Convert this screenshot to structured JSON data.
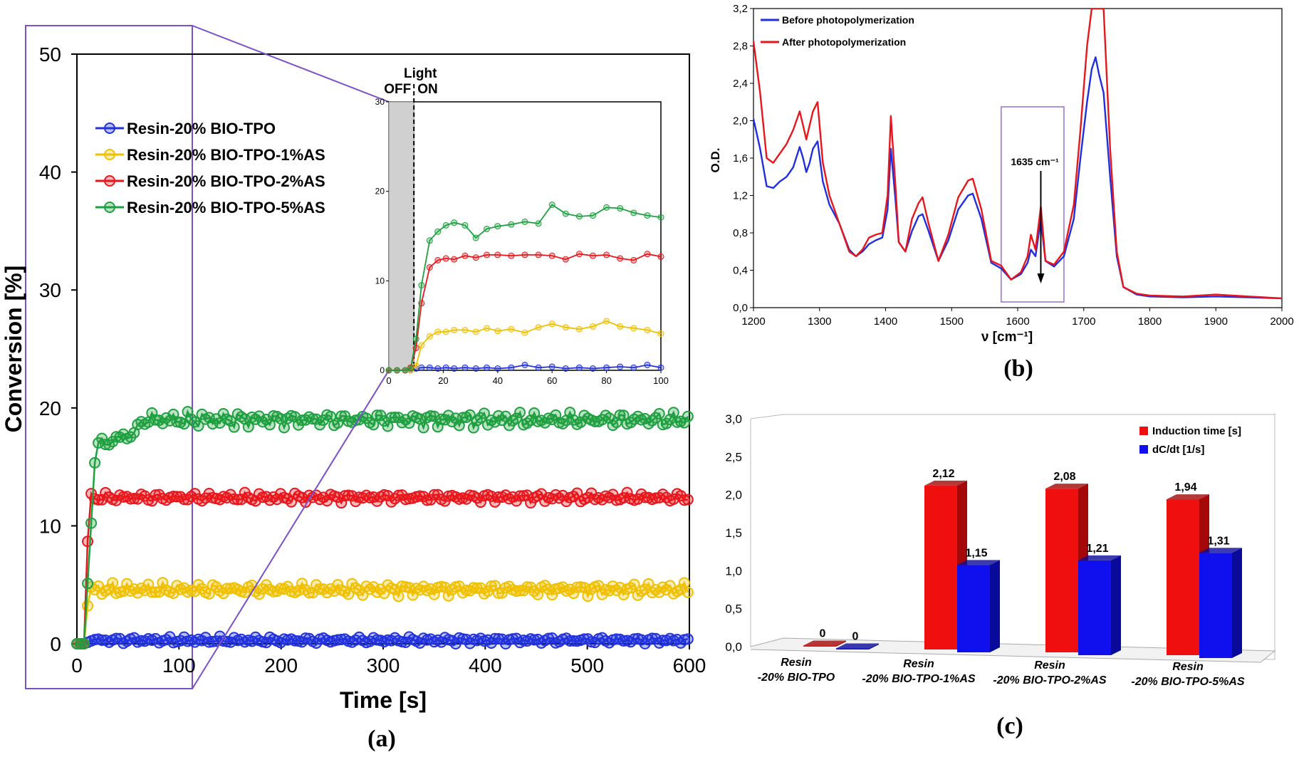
{
  "panel_labels": {
    "a": "(a)",
    "b": "(b)",
    "c": "(c)"
  },
  "chart_data": [
    {
      "id": "a",
      "type": "line",
      "xlabel": "Time [s]",
      "ylabel": "Conversion [%]",
      "xlim": [
        0,
        600
      ],
      "ylim": [
        0,
        50
      ],
      "xticks": [
        "0",
        "100",
        "200",
        "300",
        "400",
        "500",
        "600"
      ],
      "yticks": [
        "0",
        "10",
        "20",
        "30",
        "40",
        "50"
      ],
      "legend_position": "top-left",
      "series": [
        {
          "name": "Resin-20% BIO-TPO",
          "color": "#2233dd",
          "plateau": 0.3,
          "noise": 0.25,
          "jump_end": 10
        },
        {
          "name": "Resin-20% BIO-TPO-1%AS",
          "color": "#f0c000",
          "plateau": 4.6,
          "noise": 0.45,
          "jump_end": 12
        },
        {
          "name": "Resin-20% BIO-TPO-2%AS",
          "color": "#e8161c",
          "plateau": 12.4,
          "noise": 0.35,
          "jump_end": 12
        },
        {
          "name": "Resin-20% BIO-TPO-5%AS",
          "color": "#1fa040",
          "plateau": 19.0,
          "noise": 0.55,
          "jump_end": 20
        }
      ],
      "inset": {
        "xlim": [
          0,
          100
        ],
        "ylim": [
          0,
          30
        ],
        "xticks": [
          "0",
          "20",
          "40",
          "60",
          "80",
          "100"
        ],
        "yticks": [
          "0",
          "10",
          "20",
          "30"
        ],
        "light_off_label": "OFF",
        "light_on_label": "ON",
        "light_title": "Light",
        "light_on_time": 10,
        "x": [
          0,
          3,
          6,
          8,
          10,
          12,
          15,
          18,
          21,
          24,
          28,
          32,
          36,
          40,
          45,
          50,
          55,
          60,
          65,
          70,
          75,
          80,
          85,
          90,
          95,
          100
        ],
        "series": [
          {
            "name": "Resin-20% BIO-TPO",
            "values": [
              0,
              0,
              0,
              0,
              0.2,
              0.3,
              0.3,
              0.2,
              0.3,
              0.2,
              0.3,
              0.2,
              0.3,
              0.2,
              0.3,
              0.6,
              0.3,
              0.4,
              0.2,
              0.3,
              0.2,
              0.3,
              0.4,
              0.3,
              0.6,
              0.3
            ]
          },
          {
            "name": "Resin-20% BIO-TPO-1%AS",
            "values": [
              0,
              0,
              0,
              0,
              0.5,
              2.8,
              3.8,
              4.3,
              4.3,
              4.5,
              4.5,
              4.3,
              4.7,
              4.4,
              4.6,
              4.2,
              4.8,
              5.2,
              4.8,
              4.6,
              4.9,
              5.5,
              4.9,
              4.7,
              4.5,
              4.1
            ]
          },
          {
            "name": "Resin-20% BIO-TPO-2%AS",
            "values": [
              0,
              0,
              0,
              0.3,
              2.5,
              7.5,
              11.5,
              12.3,
              12.5,
              12.4,
              12.8,
              12.6,
              12.9,
              12.9,
              12.8,
              12.9,
              12.9,
              12.8,
              12.4,
              13.0,
              12.8,
              12.9,
              12.5,
              12.3,
              13.0,
              12.7
            ]
          },
          {
            "name": "Resin-20% BIO-TPO-5%AS",
            "values": [
              0,
              0,
              0,
              0.2,
              3.5,
              9.5,
              14.5,
              15.5,
              16.2,
              16.5,
              16.2,
              14.8,
              15.8,
              16.1,
              16.3,
              16.6,
              16.4,
              18.5,
              17.5,
              17.2,
              17.3,
              18.2,
              18.1,
              17.6,
              17.3,
              17.1
            ]
          }
        ]
      }
    },
    {
      "id": "b",
      "type": "line",
      "xlabel": "ν [cm⁻¹]",
      "ylabel": "O.D.",
      "xlim": [
        1200,
        2000
      ],
      "ylim": [
        0,
        3.2
      ],
      "xticks": [
        "1200",
        "1300",
        "1400",
        "1500",
        "1600",
        "1700",
        "1800",
        "1900",
        "2000"
      ],
      "yticks": [
        "0,0",
        "0,4",
        "0,8",
        "1,2",
        "1,6",
        "2,0",
        "2,4",
        "2,8",
        "3,2"
      ],
      "annotation": "1635 cm⁻¹",
      "annotation_x": 1635,
      "legend_position": "top-left",
      "series": [
        {
          "name": "Before photopolymerization",
          "color": "#1f2fe0",
          "x": [
            1200,
            1210,
            1220,
            1230,
            1240,
            1250,
            1260,
            1270,
            1275,
            1280,
            1285,
            1290,
            1297,
            1305,
            1315,
            1330,
            1345,
            1355,
            1365,
            1375,
            1385,
            1395,
            1403,
            1408,
            1415,
            1420,
            1430,
            1440,
            1450,
            1456,
            1465,
            1480,
            1495,
            1510,
            1525,
            1532,
            1545,
            1560,
            1575,
            1590,
            1605,
            1615,
            1620,
            1627,
            1635,
            1642,
            1655,
            1670,
            1685,
            1695,
            1705,
            1712,
            1718,
            1723,
            1730,
            1740,
            1750,
            1760,
            1780,
            1800,
            1850,
            1900,
            1950,
            2000
          ],
          "values": [
            2.02,
            1.7,
            1.3,
            1.28,
            1.35,
            1.4,
            1.5,
            1.72,
            1.6,
            1.45,
            1.55,
            1.7,
            1.78,
            1.35,
            1.1,
            0.9,
            0.62,
            0.55,
            0.6,
            0.68,
            0.72,
            0.75,
            1.05,
            1.7,
            1.15,
            0.7,
            0.6,
            0.82,
            0.98,
            1.0,
            0.82,
            0.5,
            0.72,
            1.05,
            1.2,
            1.22,
            0.95,
            0.48,
            0.42,
            0.3,
            0.36,
            0.48,
            0.62,
            0.55,
            0.95,
            0.5,
            0.44,
            0.55,
            0.95,
            1.6,
            2.2,
            2.55,
            2.68,
            2.5,
            2.3,
            1.4,
            0.55,
            0.22,
            0.14,
            0.12,
            0.11,
            0.12,
            0.11,
            0.1
          ]
        },
        {
          "name": "After photopolymerization",
          "color": "#e8161c",
          "x": [
            1200,
            1210,
            1220,
            1230,
            1240,
            1250,
            1260,
            1270,
            1275,
            1280,
            1285,
            1290,
            1297,
            1305,
            1315,
            1330,
            1345,
            1355,
            1365,
            1375,
            1385,
            1395,
            1403,
            1408,
            1415,
            1420,
            1430,
            1440,
            1450,
            1456,
            1465,
            1480,
            1495,
            1510,
            1525,
            1532,
            1545,
            1560,
            1575,
            1590,
            1605,
            1615,
            1620,
            1627,
            1635,
            1642,
            1655,
            1670,
            1685,
            1695,
            1705,
            1712,
            1718,
            1723,
            1730,
            1740,
            1750,
            1760,
            1780,
            1800,
            1850,
            1900,
            1950,
            2000
          ],
          "values": [
            2.85,
            2.3,
            1.6,
            1.55,
            1.65,
            1.75,
            1.9,
            2.1,
            1.95,
            1.8,
            1.95,
            2.1,
            2.2,
            1.55,
            1.2,
            0.9,
            0.6,
            0.55,
            0.62,
            0.75,
            0.78,
            0.8,
            1.2,
            2.05,
            1.3,
            0.7,
            0.6,
            0.95,
            1.12,
            1.18,
            0.9,
            0.5,
            0.78,
            1.18,
            1.36,
            1.38,
            1.05,
            0.5,
            0.45,
            0.3,
            0.38,
            0.55,
            0.78,
            0.62,
            1.08,
            0.5,
            0.46,
            0.6,
            1.1,
            1.9,
            2.8,
            3.2,
            3.2,
            3.2,
            3.2,
            1.7,
            0.6,
            0.22,
            0.15,
            0.13,
            0.12,
            0.14,
            0.12,
            0.1
          ]
        }
      ]
    },
    {
      "id": "c",
      "type": "bar",
      "ylim": [
        0,
        3
      ],
      "yticks": [
        "0,0",
        "0,5",
        "1,0",
        "1,5",
        "2,0",
        "2,5",
        "3,0"
      ],
      "legend_position": "top-right",
      "categories": [
        [
          "Resin",
          "-20% BIO-TPO"
        ],
        [
          "Resin",
          "-20% BIO-TPO-1%AS"
        ],
        [
          "Resin",
          "-20% BIO-TPO-2%AS"
        ],
        [
          "Resin",
          "-20% BIO-TPO-5%AS"
        ]
      ],
      "series": [
        {
          "name": "Induction time [s]",
          "color": "#f00f0f",
          "side_color": "#a40808",
          "values": [
            0,
            2.12,
            2.08,
            1.94
          ],
          "labels": [
            "0",
            "2,12",
            "2,08",
            "1,94"
          ]
        },
        {
          "name": "dC/dt [1/s]",
          "color": "#1010ee",
          "side_color": "#0a0a9a",
          "values": [
            0,
            1.15,
            1.21,
            1.31
          ],
          "labels": [
            "0",
            "1,15",
            "1,21",
            "1,31"
          ]
        }
      ]
    }
  ]
}
